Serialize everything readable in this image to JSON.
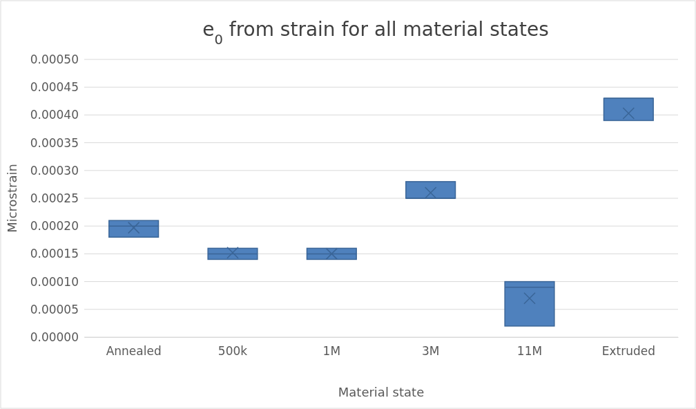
{
  "chart_data": {
    "type": "box",
    "title": "e$_{0}$ from strain for all material states",
    "xlabel": "Material state",
    "ylabel": "Microstrain",
    "categories": [
      "Annealed",
      "500k",
      "1M",
      "3M",
      "11M",
      "Extruded"
    ],
    "boxes": [
      {
        "low": 0.00018,
        "q1": 0.00018,
        "median": 0.0002,
        "q3": 0.00021,
        "high": 0.00021,
        "mean": 0.000197
      },
      {
        "low": 0.00014,
        "q1": 0.00014,
        "median": 0.00015,
        "q3": 0.00016,
        "high": 0.00016,
        "mean": 0.000152
      },
      {
        "low": 0.00014,
        "q1": 0.00014,
        "median": 0.00015,
        "q3": 0.00016,
        "high": 0.00016,
        "mean": 0.00015
      },
      {
        "low": 0.00025,
        "q1": 0.00025,
        "median": 0.00025,
        "q3": 0.00028,
        "high": 0.00028,
        "mean": 0.00026
      },
      {
        "low": 2e-05,
        "q1": 2e-05,
        "median": 9e-05,
        "q3": 0.0001,
        "high": 0.0001,
        "mean": 7e-05
      },
      {
        "low": 0.00039,
        "q1": 0.00039,
        "median": 0.00043,
        "q3": 0.00043,
        "high": 0.00043,
        "mean": 0.000403
      }
    ],
    "color": "#4f81bd",
    "marker": "cross",
    "ylim": [
      0,
      0.0005
    ],
    "yticks": [
      {
        "value": 0,
        "label": "0.00000"
      },
      {
        "value": 5e-05,
        "label": "0.00005"
      },
      {
        "value": 0.0001,
        "label": "0.00010"
      },
      {
        "value": 0.00015,
        "label": "0.00015"
      },
      {
        "value": 0.0002,
        "label": "0.00020"
      },
      {
        "value": 0.00025,
        "label": "0.00025"
      },
      {
        "value": 0.0003,
        "label": "0.00030"
      },
      {
        "value": 0.00035,
        "label": "0.00035"
      },
      {
        "value": 0.0004,
        "label": "0.00040"
      },
      {
        "value": 0.00045,
        "label": "0.00045"
      },
      {
        "value": 0.0005,
        "label": "0.00050"
      }
    ],
    "grid": "y"
  }
}
